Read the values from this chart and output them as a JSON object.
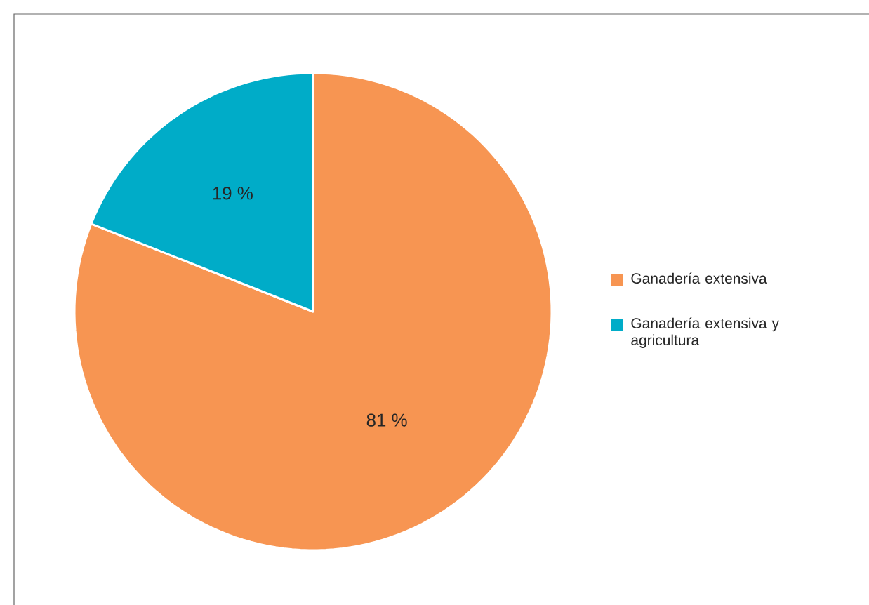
{
  "chart_data": {
    "type": "pie",
    "categories": [
      "Ganadería extensiva",
      "Ganadería extensiva y agricultura"
    ],
    "values": [
      81,
      19
    ],
    "colors": [
      "#f79552",
      "#00acc8"
    ],
    "value_labels": [
      "81 %",
      "19 %"
    ],
    "legend": "right"
  }
}
